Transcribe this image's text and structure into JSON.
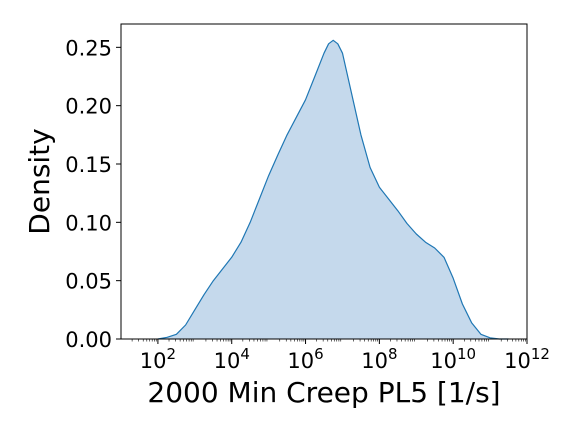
{
  "chart_data": {
    "type": "area",
    "title": "",
    "xlabel": "2000 Min Creep PL5 [1/s]",
    "ylabel": "Density",
    "x_scale": "log10",
    "xlim": [
      10,
      1000000000000
    ],
    "ylim": [
      0,
      0.27
    ],
    "x_ticks": [
      {
        "value": 100,
        "base": "10",
        "exp": "2"
      },
      {
        "value": 10000,
        "base": "10",
        "exp": "4"
      },
      {
        "value": 1000000,
        "base": "10",
        "exp": "6"
      },
      {
        "value": 100000000,
        "base": "10",
        "exp": "8"
      },
      {
        "value": 10000000000,
        "base": "10",
        "exp": "10"
      },
      {
        "value": 1000000000000,
        "base": "10",
        "exp": "12"
      }
    ],
    "y_ticks": [
      {
        "value": 0,
        "label": "0.00"
      },
      {
        "value": 0.05,
        "label": "0.05"
      },
      {
        "value": 0.1,
        "label": "0.10"
      },
      {
        "value": 0.15,
        "label": "0.15"
      },
      {
        "value": 0.2,
        "label": "0.20"
      },
      {
        "value": 0.25,
        "label": "0.25"
      }
    ],
    "grid": false,
    "series": [
      {
        "color": "#1f77b4",
        "fill_color": "#c5d9ec",
        "x": [
          100,
          178,
          316,
          562,
          1000,
          1778,
          3162,
          5623,
          10000,
          17783,
          31623,
          56234,
          100000,
          177828,
          316228,
          562341,
          1000000,
          1778279,
          3162278,
          4216965,
          5623413,
          7498942,
          10000000,
          17782794,
          31622777,
          56234133,
          100000000,
          177827941,
          316227766,
          562341325,
          1000000000,
          1778279410,
          3162277660,
          5623413252,
          10000000000,
          17782794100,
          31622776602,
          56234132519,
          100000000000,
          177827941004,
          316227766017
        ],
        "y": [
          0.0,
          0.0015,
          0.004,
          0.012,
          0.025,
          0.038,
          0.05,
          0.06,
          0.07,
          0.083,
          0.1,
          0.12,
          0.14,
          0.158,
          0.175,
          0.19,
          0.205,
          0.225,
          0.245,
          0.253,
          0.256,
          0.253,
          0.245,
          0.21,
          0.175,
          0.147,
          0.13,
          0.12,
          0.11,
          0.099,
          0.09,
          0.083,
          0.078,
          0.07,
          0.052,
          0.03,
          0.014,
          0.004,
          0.001,
          0.0,
          0.0
        ]
      }
    ]
  }
}
